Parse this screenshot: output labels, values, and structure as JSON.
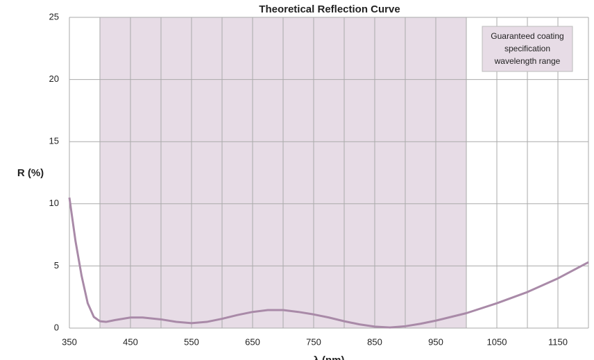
{
  "chart_data": {
    "type": "line",
    "title": "Theoretical Reflection Curve",
    "x_label": "λ (nm)",
    "y_label": "R (%)",
    "xlim": [
      350,
      1200
    ],
    "ylim": [
      0,
      25
    ],
    "xticks": [
      350,
      450,
      550,
      650,
      750,
      850,
      950,
      1050,
      1150
    ],
    "yticks": [
      0,
      5,
      10,
      15,
      20,
      25
    ],
    "xgrid": [
      350,
      400,
      450,
      500,
      550,
      600,
      650,
      700,
      750,
      800,
      850,
      900,
      950,
      1000,
      1050,
      1100,
      1150,
      1200
    ],
    "grid": true,
    "band": {
      "range": [
        400,
        1000
      ],
      "color": "#e7dce6"
    },
    "annotation": {
      "lines": [
        "Guaranteed coating",
        "specification",
        "wavelength range"
      ]
    },
    "x": [
      350,
      360,
      370,
      380,
      390,
      400,
      410,
      425,
      450,
      470,
      500,
      525,
      550,
      575,
      600,
      625,
      650,
      675,
      700,
      725,
      750,
      775,
      800,
      825,
      850,
      875,
      900,
      925,
      950,
      975,
      1000,
      1050,
      1100,
      1150,
      1200
    ],
    "series": [
      {
        "name": "R",
        "color": "#a98aa8",
        "values": [
          10.5,
          7.0,
          4.2,
          2.0,
          0.9,
          0.55,
          0.5,
          0.65,
          0.85,
          0.85,
          0.7,
          0.5,
          0.4,
          0.5,
          0.75,
          1.05,
          1.3,
          1.45,
          1.45,
          1.3,
          1.1,
          0.85,
          0.55,
          0.3,
          0.12,
          0.05,
          0.15,
          0.35,
          0.6,
          0.9,
          1.2,
          2.0,
          2.9,
          4.0,
          5.3
        ]
      }
    ]
  }
}
